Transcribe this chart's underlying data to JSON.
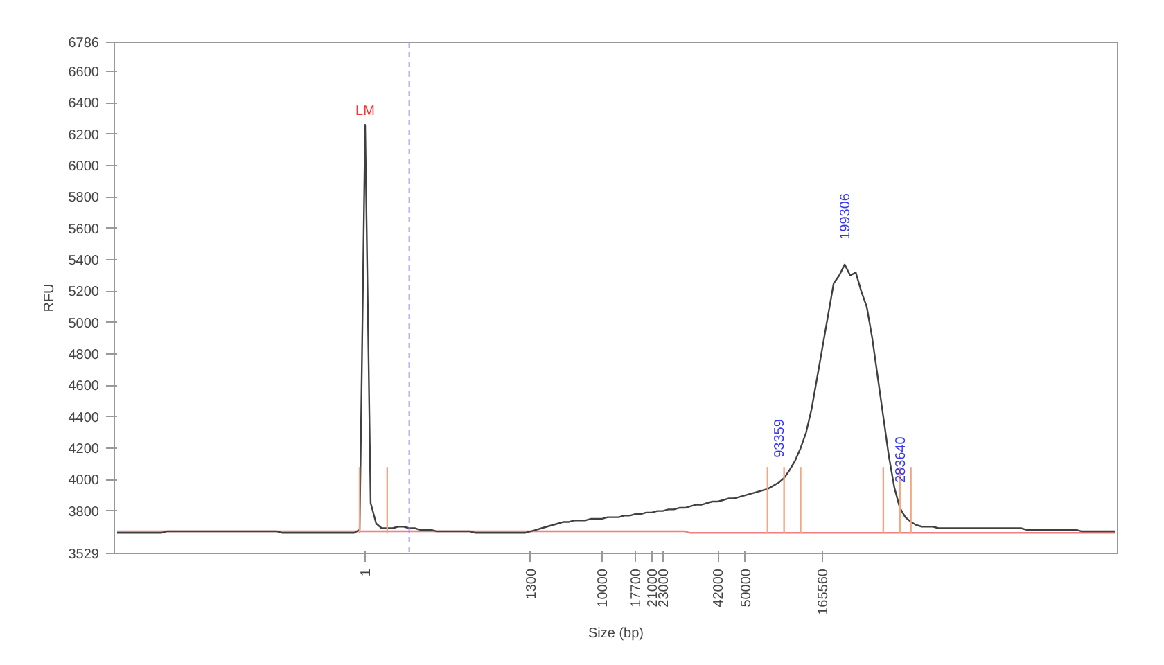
{
  "chart_data": {
    "type": "line",
    "xlabel": "Size (bp)",
    "ylabel": "RFU",
    "ylim": [
      3529,
      6786
    ],
    "yticks": [
      3529,
      3800,
      4000,
      4200,
      4400,
      4600,
      4800,
      5000,
      5200,
      5400,
      5600,
      5800,
      6000,
      6200,
      6400,
      6600,
      6786
    ],
    "grid": false,
    "categories": [
      null,
      null,
      null,
      null,
      null,
      null,
      null,
      null,
      null,
      null,
      null,
      null,
      null,
      null,
      null,
      null,
      null,
      null,
      null,
      null,
      null,
      null,
      null,
      null,
      null,
      null,
      null,
      null,
      null,
      null,
      null,
      null,
      null,
      null,
      null,
      null,
      null,
      null,
      null,
      null,
      null,
      null,
      null,
      null,
      null,
      "1",
      null,
      null,
      null,
      null,
      null,
      null,
      null,
      null,
      null,
      null,
      null,
      null,
      null,
      null,
      null,
      null,
      null,
      null,
      null,
      null,
      null,
      null,
      null,
      null,
      null,
      null,
      null,
      null,
      null,
      "1300",
      null,
      null,
      null,
      null,
      null,
      null,
      null,
      null,
      null,
      null,
      null,
      null,
      "10000",
      null,
      null,
      null,
      null,
      null,
      "17700",
      null,
      null,
      "21000",
      null,
      "23000",
      null,
      null,
      null,
      null,
      null,
      null,
      null,
      null,
      null,
      "42000",
      null,
      null,
      null,
      null,
      "50000",
      null,
      null,
      null,
      null,
      null,
      null,
      null,
      null,
      null,
      null,
      null,
      null,
      null,
      "165560",
      null,
      null,
      null,
      null,
      null,
      null,
      null,
      null,
      null,
      null,
      null,
      null,
      null,
      null,
      null,
      null,
      null,
      null,
      null,
      null,
      null,
      null,
      null,
      null,
      null,
      null,
      null,
      null,
      null,
      null,
      null,
      null,
      null,
      null,
      null,
      null,
      null,
      null,
      null,
      null,
      null,
      null,
      null,
      null,
      null,
      null,
      null,
      null,
      null,
      null,
      null,
      null,
      null
    ],
    "series": [
      {
        "type": "line",
        "color": "#f08080",
        "values": [
          3670,
          3670,
          3670,
          3670,
          3670,
          3670,
          3670,
          3670,
          3670,
          3670,
          3670,
          3670,
          3670,
          3670,
          3670,
          3670,
          3670,
          3670,
          3670,
          3670,
          3670,
          3670,
          3670,
          3670,
          3670,
          3670,
          3670,
          3670,
          3670,
          3670,
          3670,
          3670,
          3670,
          3670,
          3670,
          3670,
          3670,
          3670,
          3670,
          3670,
          3670,
          3670,
          3670,
          3670,
          3670,
          3670,
          3670,
          3670,
          3670,
          3670,
          3670,
          3670,
          3670,
          3670,
          3670,
          3670,
          3670,
          3670,
          3670,
          3670,
          3670,
          3670,
          3670,
          3670,
          3670,
          3670,
          3670,
          3670,
          3670,
          3670,
          3670,
          3670,
          3670,
          3670,
          3670,
          3670,
          3670,
          3670,
          3670,
          3670,
          3670,
          3670,
          3670,
          3670,
          3670,
          3670,
          3670,
          3670,
          3670,
          3670,
          3670,
          3670,
          3670,
          3670,
          3670,
          3670,
          3670,
          3670,
          3670,
          3670,
          3670,
          3670,
          3670,
          3670,
          3660,
          3660,
          3660,
          3660,
          3660,
          3660,
          3660,
          3660,
          3660,
          3660,
          3660,
          3660,
          3660,
          3660,
          3660,
          3660,
          3660,
          3660,
          3660,
          3660,
          3660,
          3660,
          3660,
          3660,
          3660,
          3660,
          3660,
          3660,
          3660,
          3660,
          3660,
          3660,
          3660,
          3660,
          3660,
          3660,
          3660,
          3660,
          3660,
          3660,
          3660,
          3660,
          3660,
          3660,
          3660,
          3660,
          3660,
          3660,
          3660,
          3660,
          3660,
          3660,
          3660,
          3660,
          3660,
          3660,
          3660,
          3660,
          3660,
          3660,
          3660,
          3660,
          3660,
          3660,
          3660,
          3660,
          3660,
          3660,
          3660,
          3660,
          3660,
          3660,
          3660,
          3660,
          3660,
          3660,
          3660,
          3660
        ]
      },
      {
        "color": "#404040",
        "values": [
          3660,
          3660,
          3660,
          3660,
          3660,
          3660,
          3660,
          3660,
          3660,
          3670,
          3670,
          3670,
          3670,
          3670,
          3670,
          3670,
          3670,
          3670,
          3670,
          3670,
          3670,
          3670,
          3670,
          3670,
          3670,
          3670,
          3670,
          3670,
          3670,
          3670,
          3660,
          3660,
          3660,
          3660,
          3660,
          3660,
          3660,
          3660,
          3660,
          3660,
          3660,
          3660,
          3660,
          3660,
          3680,
          6260,
          3850,
          3720,
          3690,
          3690,
          3690,
          3700,
          3700,
          3690,
          3690,
          3680,
          3680,
          3680,
          3670,
          3670,
          3670,
          3670,
          3670,
          3670,
          3670,
          3660,
          3660,
          3660,
          3660,
          3660,
          3660,
          3660,
          3660,
          3660,
          3660,
          3670,
          3680,
          3690,
          3700,
          3710,
          3720,
          3730,
          3730,
          3740,
          3740,
          3740,
          3750,
          3750,
          3750,
          3760,
          3760,
          3760,
          3770,
          3770,
          3780,
          3780,
          3790,
          3790,
          3800,
          3800,
          3810,
          3810,
          3820,
          3820,
          3830,
          3840,
          3840,
          3850,
          3860,
          3860,
          3870,
          3880,
          3880,
          3890,
          3900,
          3910,
          3920,
          3930,
          3940,
          3960,
          3980,
          4010,
          4060,
          4120,
          4200,
          4300,
          4450,
          4650,
          4850,
          5050,
          5250,
          5300,
          5370,
          5300,
          5320,
          5200,
          5100,
          4900,
          4650,
          4400,
          4150,
          3950,
          3820,
          3760,
          3730,
          3710,
          3700,
          3700,
          3700,
          3690,
          3690,
          3690,
          3690,
          3690,
          3690,
          3690,
          3690,
          3690,
          3690,
          3690,
          3690,
          3690,
          3690,
          3690,
          3690,
          3680,
          3680,
          3680,
          3680,
          3680,
          3680,
          3680,
          3680,
          3680,
          3680,
          3670,
          3670,
          3670,
          3670,
          3670,
          3670,
          3670
        ]
      },
      {
        "type": "bar",
        "color": "#f4a582",
        "values": [
          null,
          null,
          null,
          null,
          null,
          null,
          null,
          null,
          null,
          null,
          null,
          null,
          null,
          null,
          null,
          null,
          null,
          null,
          null,
          null,
          null,
          null,
          null,
          null,
          null,
          null,
          null,
          null,
          null,
          null,
          null,
          null,
          null,
          null,
          null,
          null,
          null,
          null,
          null,
          null,
          null,
          null,
          null,
          null,
          420,
          null,
          null,
          null,
          null,
          420,
          null,
          null,
          null,
          null,
          null,
          null,
          null,
          null,
          null,
          null,
          null,
          null,
          null,
          null,
          null,
          null,
          null,
          null,
          null,
          null,
          null,
          null,
          null,
          null,
          null,
          null,
          null,
          null,
          null,
          null,
          null,
          null,
          null,
          null,
          null,
          null,
          null,
          null,
          null,
          null,
          null,
          null,
          null,
          null,
          null,
          null,
          null,
          null,
          null,
          null,
          null,
          null,
          null,
          null,
          null,
          null,
          null,
          null,
          null,
          null,
          null,
          null,
          null,
          null,
          null,
          null,
          null,
          null,
          420,
          null,
          null,
          420,
          null,
          null,
          420,
          null,
          null,
          null,
          null,
          null,
          null,
          null,
          null,
          null,
          null,
          null,
          null,
          null,
          null,
          420,
          null,
          null,
          420,
          null,
          420,
          null,
          null,
          null,
          null,
          null,
          null,
          null,
          null,
          null,
          null,
          null,
          null,
          null,
          null,
          null,
          null,
          null,
          null,
          null,
          null,
          null,
          null,
          null,
          null,
          null,
          null,
          null,
          null,
          null,
          null,
          null,
          null,
          null,
          null,
          null,
          null,
          null
        ],
        "base": [
          null,
          null,
          null,
          null,
          null,
          null,
          null,
          null,
          null,
          null,
          null,
          null,
          null,
          null,
          null,
          null,
          null,
          null,
          null,
          null,
          null,
          null,
          null,
          null,
          null,
          null,
          null,
          null,
          null,
          null,
          null,
          null,
          null,
          null,
          null,
          null,
          null,
          null,
          null,
          null,
          null,
          null,
          null,
          null,
          3660,
          null,
          null,
          null,
          null,
          3660,
          null,
          null,
          null,
          null,
          null,
          null,
          null,
          null,
          null,
          null,
          null,
          null,
          null,
          null,
          null,
          null,
          null,
          null,
          null,
          null,
          null,
          null,
          null,
          null,
          null,
          null,
          null,
          null,
          null,
          null,
          null,
          null,
          null,
          null,
          null,
          null,
          null,
          null,
          null,
          null,
          null,
          null,
          null,
          null,
          null,
          null,
          null,
          null,
          null,
          null,
          null,
          null,
          null,
          null,
          null,
          null,
          null,
          null,
          null,
          null,
          null,
          null,
          null,
          null,
          null,
          null,
          null,
          null,
          3660,
          null,
          null,
          3660,
          null,
          null,
          3660,
          null,
          null,
          null,
          null,
          null,
          null,
          null,
          null,
          null,
          null,
          null,
          null,
          null,
          null,
          3660,
          null,
          null,
          3660,
          null,
          3660,
          null,
          null,
          null,
          null,
          null,
          null,
          null,
          null,
          null,
          null,
          null,
          null,
          null,
          null,
          null,
          null,
          null,
          null,
          null,
          null,
          null,
          null,
          null,
          null,
          null,
          null,
          null,
          null,
          null,
          null,
          null,
          null,
          null,
          null,
          null,
          null,
          null
        ]
      }
    ],
    "annotations": [
      {
        "text": "LM",
        "x": "1",
        "y": 6260
      },
      {
        "text": "93359",
        "y": 3980
      },
      {
        "text": "199306",
        "y": 5370
      },
      {
        "text": "283640",
        "y": 3820
      }
    ]
  }
}
